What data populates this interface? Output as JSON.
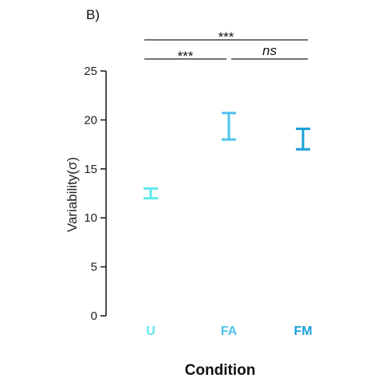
{
  "chart_data": {
    "panel_label": "B)",
    "type": "error-bar",
    "categories": [
      "U",
      "FA",
      "FM"
    ],
    "category_colors": [
      "#5ee8ec",
      "#4fc3ec",
      "#1a9fd8"
    ],
    "intervals": [
      {
        "category": "U",
        "low": 12.0,
        "high": 13.0
      },
      {
        "category": "FA",
        "low": 18.0,
        "high": 20.7
      },
      {
        "category": "FM",
        "low": 17.0,
        "high": 19.1
      }
    ],
    "xlabel": "Condition",
    "ylabel": "Variability(σ)",
    "ylim": [
      0,
      25
    ],
    "yticks": [
      0,
      5,
      10,
      15,
      20,
      25
    ],
    "significance": [
      {
        "from": "U",
        "to": "FM",
        "label": "***"
      },
      {
        "from": "U",
        "to": "FA",
        "label": "***"
      },
      {
        "from": "FA",
        "to": "FM",
        "label": "ns"
      }
    ]
  }
}
